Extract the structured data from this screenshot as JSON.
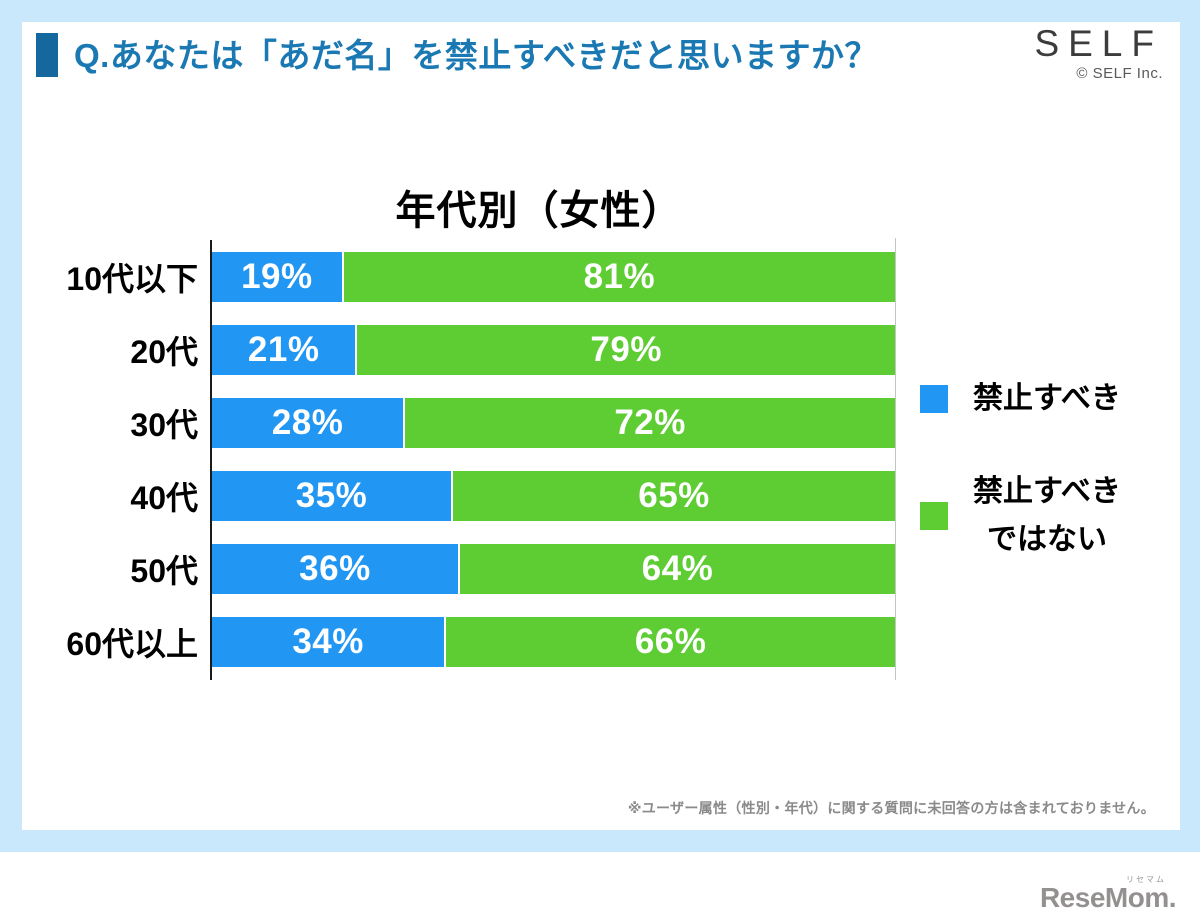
{
  "header": {
    "question": "Q.あなたは「あだ名」を禁止すべきだと思いますか？",
    "brand": "SELF",
    "brand_copyright": "© SELF Inc."
  },
  "chart_data": {
    "type": "bar",
    "orientation": "horizontal",
    "stacked": true,
    "title": "年代別（女性）",
    "categories": [
      "10代以下",
      "20代",
      "30代",
      "40代",
      "50代",
      "60代以上"
    ],
    "series": [
      {
        "name": "禁止すべき",
        "color": "#2196f3",
        "values": [
          19,
          21,
          28,
          35,
          36,
          34
        ],
        "labels": [
          "19%",
          "21%",
          "28%",
          "35%",
          "36%",
          "34%"
        ]
      },
      {
        "name": "禁止すべきではない",
        "color": "#5ecc33",
        "values": [
          81,
          79,
          72,
          65,
          64,
          66
        ],
        "labels": [
          "81%",
          "79%",
          "72%",
          "65%",
          "64%",
          "66%"
        ]
      }
    ],
    "xlim": [
      0,
      100
    ],
    "value_suffix": "%",
    "grid": false,
    "legend_position": "right"
  },
  "legend": {
    "item1_label": "禁止すべき",
    "item2_label_line1": "禁止すべき",
    "item2_label_line2": "ではない"
  },
  "footer": {
    "note": "※ユーザー属性（性別・年代）に関する質問に未回答の方は含まれておりません。",
    "watermark": "ReseMom.",
    "watermark_ruby": "リセマム"
  },
  "colors": {
    "background": "#c9e8fb",
    "card": "#ffffff",
    "header_text": "#1a78b2",
    "header_accent": "#15689e",
    "ban_blue": "#2196f3",
    "no_ban_green": "#5ecc33",
    "note_gray": "#8a8a8a"
  }
}
